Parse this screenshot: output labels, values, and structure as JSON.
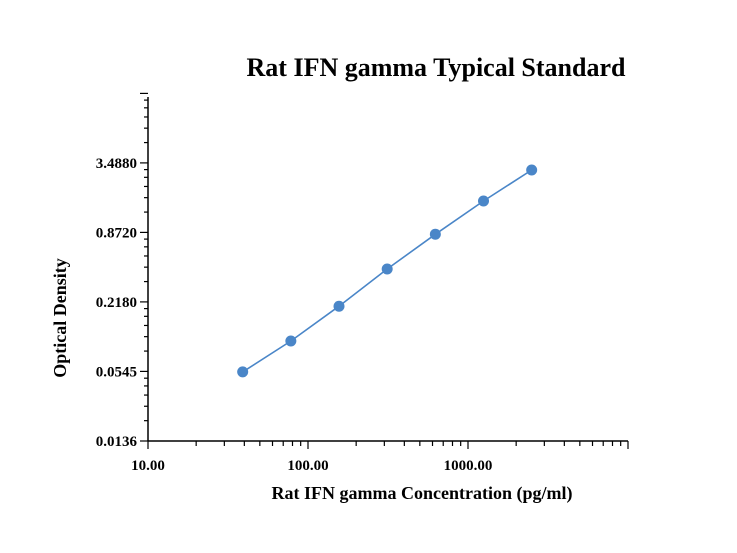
{
  "chart_data": {
    "type": "scatter",
    "title": "Rat IFN gamma Typical Standard",
    "xlabel": "Rat IFN gamma Concentration (pg/ml)",
    "ylabel": "Optical Density",
    "x_scale": "log",
    "y_scale": "log",
    "xlim": [
      10,
      10000
    ],
    "ylim": [
      0.0136,
      13.952
    ],
    "x_ticks": [
      10,
      100,
      1000
    ],
    "x_tick_labels": [
      "10.00",
      "100.00",
      "1000.00"
    ],
    "y_ticks": [
      0.0136,
      0.0545,
      0.218,
      0.872,
      3.488
    ],
    "y_tick_labels": [
      "0.0136",
      "0.0545",
      "0.2180",
      "0.8720",
      "3.4880"
    ],
    "grid": false,
    "series": [
      {
        "x": [
          39.06,
          78.13,
          156.25,
          312.5,
          625,
          1250,
          2500
        ],
        "y": [
          0.054,
          0.1,
          0.2,
          0.42,
          0.84,
          1.63,
          3.03
        ],
        "color": "#4a86c8",
        "line": true,
        "markers": true
      }
    ]
  }
}
